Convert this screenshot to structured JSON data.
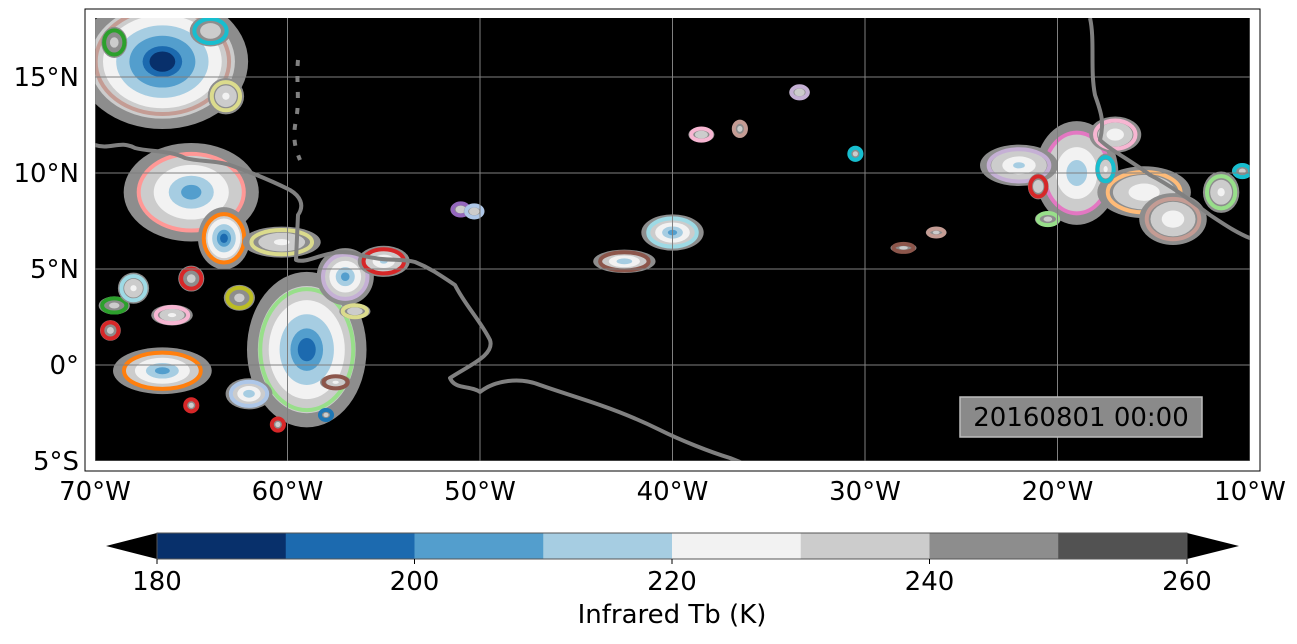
{
  "map": {
    "extent": {
      "lon": [
        -70,
        -10
      ],
      "lat": [
        -5.5,
        18.5
      ]
    },
    "lat_ticks": [
      {
        "value": 15,
        "label": "15°N"
      },
      {
        "value": 10,
        "label": "10°N"
      },
      {
        "value": 5,
        "label": "5°N"
      },
      {
        "value": 0,
        "label": "0°"
      },
      {
        "value": -5,
        "label": "5°S"
      }
    ],
    "lon_ticks": [
      {
        "value": -70,
        "label": "70°W"
      },
      {
        "value": -60,
        "label": "60°W"
      },
      {
        "value": -50,
        "label": "50°W"
      },
      {
        "value": -40,
        "label": "40°W"
      },
      {
        "value": -30,
        "label": "30°W"
      },
      {
        "value": -20,
        "label": "20°W"
      },
      {
        "value": -10,
        "label": "10°W"
      }
    ],
    "timestamp": "20160801 00:00",
    "background_color": "#000000",
    "coastline_color": "#808080",
    "gridlines": true,
    "clouds": [
      {
        "lon": -66.5,
        "lat": 15.8,
        "rx": 3.3,
        "ry": 2.6,
        "min_tb": 190,
        "outline": "#c49c94"
      },
      {
        "lon": -65,
        "lat": 9,
        "rx": 2.6,
        "ry": 1.9,
        "min_tb": 210,
        "outline": "#ff9896"
      },
      {
        "lon": -63.3,
        "lat": 6.6,
        "rx": 1.0,
        "ry": 1.2,
        "min_tb": 200,
        "outline": "#ff7f0e"
      },
      {
        "lon": -66.5,
        "lat": -0.3,
        "rx": 1.9,
        "ry": 0.9,
        "min_tb": 210,
        "outline": "#ff7f0e"
      },
      {
        "lon": -59,
        "lat": 0.8,
        "rx": 2.3,
        "ry": 3.0,
        "min_tb": 200,
        "outline": "#98df8a"
      },
      {
        "lon": -57,
        "lat": 4.6,
        "rx": 1.1,
        "ry": 1.1,
        "min_tb": 210,
        "outline": "#c5b0d5"
      },
      {
        "lon": -55,
        "lat": 5.4,
        "rx": 1.0,
        "ry": 0.6,
        "min_tb": 220,
        "outline": "#d62728"
      },
      {
        "lon": -60.3,
        "lat": 6.4,
        "rx": 1.5,
        "ry": 0.6,
        "min_tb": 230,
        "outline": "#dbdb8d"
      },
      {
        "lon": -42.5,
        "lat": 5.4,
        "rx": 1.2,
        "ry": 0.45,
        "min_tb": 215,
        "outline": "#8c564b"
      },
      {
        "lon": -40,
        "lat": 6.9,
        "rx": 1.2,
        "ry": 0.7,
        "min_tb": 210,
        "outline": "#9edae5"
      },
      {
        "lon": -19,
        "lat": 10,
        "rx": 1.6,
        "ry": 2.0,
        "min_tb": 215,
        "outline": "#e377c2"
      },
      {
        "lon": -15.5,
        "lat": 9,
        "rx": 1.8,
        "ry": 1.0,
        "min_tb": 225,
        "outline": "#ffbb78"
      },
      {
        "lon": -14,
        "lat": 7.6,
        "rx": 1.3,
        "ry": 1.0,
        "min_tb": 225,
        "outline": "#c49c94"
      },
      {
        "lon": -22,
        "lat": 10.4,
        "rx": 1.5,
        "ry": 0.8,
        "min_tb": 220,
        "outline": "#c5b0d5"
      },
      {
        "lon": -17,
        "lat": 12,
        "rx": 1.0,
        "ry": 0.7,
        "min_tb": 225,
        "outline": "#f7b6d2"
      },
      {
        "lon": -11.5,
        "lat": 9,
        "rx": 0.7,
        "ry": 0.8,
        "min_tb": 230,
        "outline": "#98df8a"
      },
      {
        "lon": -33.4,
        "lat": 14.2,
        "rx": 0.4,
        "ry": 0.3,
        "min_tb": 235,
        "outline": "#c5b0d5"
      },
      {
        "lon": -30.5,
        "lat": 11,
        "rx": 0.3,
        "ry": 0.3,
        "min_tb": 240,
        "outline": "#17becf"
      },
      {
        "lon": -38.5,
        "lat": 12,
        "rx": 0.5,
        "ry": 0.3,
        "min_tb": 235,
        "outline": "#f7b6d2"
      },
      {
        "lon": -51,
        "lat": 8.1,
        "rx": 0.4,
        "ry": 0.3,
        "min_tb": 235,
        "outline": "#9467bd"
      },
      {
        "lon": -50.3,
        "lat": 8,
        "rx": 0.4,
        "ry": 0.3,
        "min_tb": 235,
        "outline": "#aec7e8"
      },
      {
        "lon": -65,
        "lat": 4.5,
        "rx": 0.5,
        "ry": 0.5,
        "min_tb": 240,
        "outline": "#d62728"
      },
      {
        "lon": -62.5,
        "lat": 3.5,
        "rx": 0.6,
        "ry": 0.5,
        "min_tb": 240,
        "outline": "#bcbd22"
      },
      {
        "lon": -66,
        "lat": 2.6,
        "rx": 0.8,
        "ry": 0.4,
        "min_tb": 230,
        "outline": "#f7b6d2"
      },
      {
        "lon": -69,
        "lat": 3.1,
        "rx": 0.6,
        "ry": 0.35,
        "min_tb": 240,
        "outline": "#2ca02c"
      },
      {
        "lon": -68,
        "lat": 4,
        "rx": 0.6,
        "ry": 0.6,
        "min_tb": 230,
        "outline": "#9edae5"
      },
      {
        "lon": -69.2,
        "lat": 1.8,
        "rx": 0.4,
        "ry": 0.4,
        "min_tb": 240,
        "outline": "#d62728"
      },
      {
        "lon": -62,
        "lat": -1.5,
        "rx": 0.9,
        "ry": 0.6,
        "min_tb": 215,
        "outline": "#aec7e8"
      },
      {
        "lon": -57.5,
        "lat": -0.9,
        "rx": 0.6,
        "ry": 0.3,
        "min_tb": 230,
        "outline": "#8c564b"
      },
      {
        "lon": -65,
        "lat": -2.1,
        "rx": 0.3,
        "ry": 0.3,
        "min_tb": 240,
        "outline": "#d62728"
      },
      {
        "lon": -60.5,
        "lat": -3.1,
        "rx": 0.3,
        "ry": 0.3,
        "min_tb": 240,
        "outline": "#d62728"
      },
      {
        "lon": -58,
        "lat": -2.6,
        "rx": 0.3,
        "ry": 0.25,
        "min_tb": 240,
        "outline": "#1f77b4"
      },
      {
        "lon": -56.5,
        "lat": 2.8,
        "rx": 0.6,
        "ry": 0.3,
        "min_tb": 235,
        "outline": "#dbdb8d"
      },
      {
        "lon": -28,
        "lat": 6.1,
        "rx": 0.5,
        "ry": 0.2,
        "min_tb": 240,
        "outline": "#8c564b"
      },
      {
        "lon": -26.3,
        "lat": 6.9,
        "rx": 0.4,
        "ry": 0.2,
        "min_tb": 240,
        "outline": "#c49c94"
      },
      {
        "lon": -20.5,
        "lat": 7.6,
        "rx": 0.5,
        "ry": 0.3,
        "min_tb": 240,
        "outline": "#98df8a"
      },
      {
        "lon": -21,
        "lat": 9.3,
        "rx": 0.4,
        "ry": 0.5,
        "min_tb": 235,
        "outline": "#d62728"
      },
      {
        "lon": -17.5,
        "lat": 10.2,
        "rx": 0.4,
        "ry": 0.6,
        "min_tb": 230,
        "outline": "#17becf"
      },
      {
        "lon": -64,
        "lat": 17.4,
        "rx": 0.8,
        "ry": 0.6,
        "min_tb": 235,
        "outline": "#17becf"
      },
      {
        "lon": -63.2,
        "lat": 14,
        "rx": 0.7,
        "ry": 0.7,
        "min_tb": 230,
        "outline": "#dbdb8d"
      },
      {
        "lon": -69,
        "lat": 16.8,
        "rx": 0.5,
        "ry": 0.6,
        "min_tb": 240,
        "outline": "#2ca02c"
      },
      {
        "lon": -10.4,
        "lat": 10.1,
        "rx": 0.4,
        "ry": 0.3,
        "min_tb": 240,
        "outline": "#17becf"
      },
      {
        "lon": -36.5,
        "lat": 12.3,
        "rx": 0.3,
        "ry": 0.35,
        "min_tb": 240,
        "outline": "#c49c94"
      }
    ]
  },
  "colorbar": {
    "label": "Infrared Tb (K)",
    "ticks": [
      {
        "value": 180,
        "label": "180"
      },
      {
        "value": 200,
        "label": "200"
      },
      {
        "value": 220,
        "label": "220"
      },
      {
        "value": 240,
        "label": "240"
      },
      {
        "value": 260,
        "label": "260"
      }
    ],
    "levels": [
      180,
      190,
      200,
      210,
      220,
      230,
      240,
      250,
      260
    ],
    "colors": [
      "#08306b",
      "#1c6aaf",
      "#539ecd",
      "#a6cde2",
      "#f2f2f2",
      "#cccccc",
      "#8d8d8d",
      "#525252"
    ],
    "extend_color": "#000000"
  }
}
